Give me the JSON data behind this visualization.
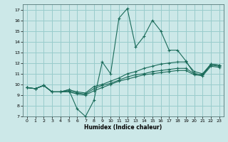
{
  "xlabel": "Humidex (Indice chaleur)",
  "bg_color": "#cce8e8",
  "grid_color": "#99cccc",
  "line_color": "#1a6b5a",
  "xlim": [
    -0.5,
    23.5
  ],
  "ylim": [
    7,
    17.5
  ],
  "xticks": [
    0,
    1,
    2,
    3,
    4,
    5,
    6,
    7,
    8,
    9,
    10,
    11,
    12,
    13,
    14,
    15,
    16,
    17,
    18,
    19,
    20,
    21,
    22,
    23
  ],
  "yticks": [
    7,
    8,
    9,
    10,
    11,
    12,
    13,
    14,
    15,
    16,
    17
  ],
  "lines": [
    {
      "x": [
        0,
        1,
        2,
        3,
        4,
        5,
        6,
        7,
        8,
        9,
        10,
        11,
        12,
        13,
        14,
        15,
        16,
        17,
        18,
        19,
        20,
        21,
        22,
        23
      ],
      "y": [
        9.7,
        9.6,
        9.9,
        9.3,
        9.3,
        9.5,
        7.7,
        7.0,
        8.5,
        12.1,
        11.0,
        16.2,
        17.1,
        13.5,
        14.5,
        16.0,
        15.0,
        13.2,
        13.2,
        12.2,
        11.0,
        10.9,
        11.9,
        11.8
      ]
    },
    {
      "x": [
        0,
        1,
        2,
        3,
        4,
        5,
        6,
        7,
        8,
        9,
        10,
        11,
        12,
        13,
        14,
        15,
        16,
        17,
        18,
        19,
        20,
        21,
        22,
        23
      ],
      "y": [
        9.7,
        9.6,
        9.9,
        9.3,
        9.3,
        9.5,
        9.3,
        9.2,
        9.8,
        10.0,
        10.3,
        10.6,
        11.0,
        11.2,
        11.5,
        11.7,
        11.9,
        12.0,
        12.1,
        12.1,
        11.2,
        11.0,
        11.9,
        11.8
      ]
    },
    {
      "x": [
        0,
        1,
        2,
        3,
        4,
        5,
        6,
        7,
        8,
        9,
        10,
        11,
        12,
        13,
        14,
        15,
        16,
        17,
        18,
        19,
        20,
        21,
        22,
        23
      ],
      "y": [
        9.7,
        9.6,
        9.9,
        9.3,
        9.3,
        9.4,
        9.2,
        9.1,
        9.6,
        9.9,
        10.1,
        10.4,
        10.7,
        10.9,
        11.0,
        11.2,
        11.3,
        11.4,
        11.5,
        11.5,
        11.0,
        10.9,
        11.8,
        11.7
      ]
    },
    {
      "x": [
        0,
        1,
        2,
        3,
        4,
        5,
        6,
        7,
        8,
        9,
        10,
        11,
        12,
        13,
        14,
        15,
        16,
        17,
        18,
        19,
        20,
        21,
        22,
        23
      ],
      "y": [
        9.7,
        9.6,
        9.9,
        9.3,
        9.3,
        9.3,
        9.1,
        9.0,
        9.4,
        9.7,
        10.0,
        10.3,
        10.5,
        10.7,
        10.9,
        11.0,
        11.1,
        11.2,
        11.3,
        11.3,
        10.9,
        10.8,
        11.7,
        11.6
      ]
    }
  ]
}
